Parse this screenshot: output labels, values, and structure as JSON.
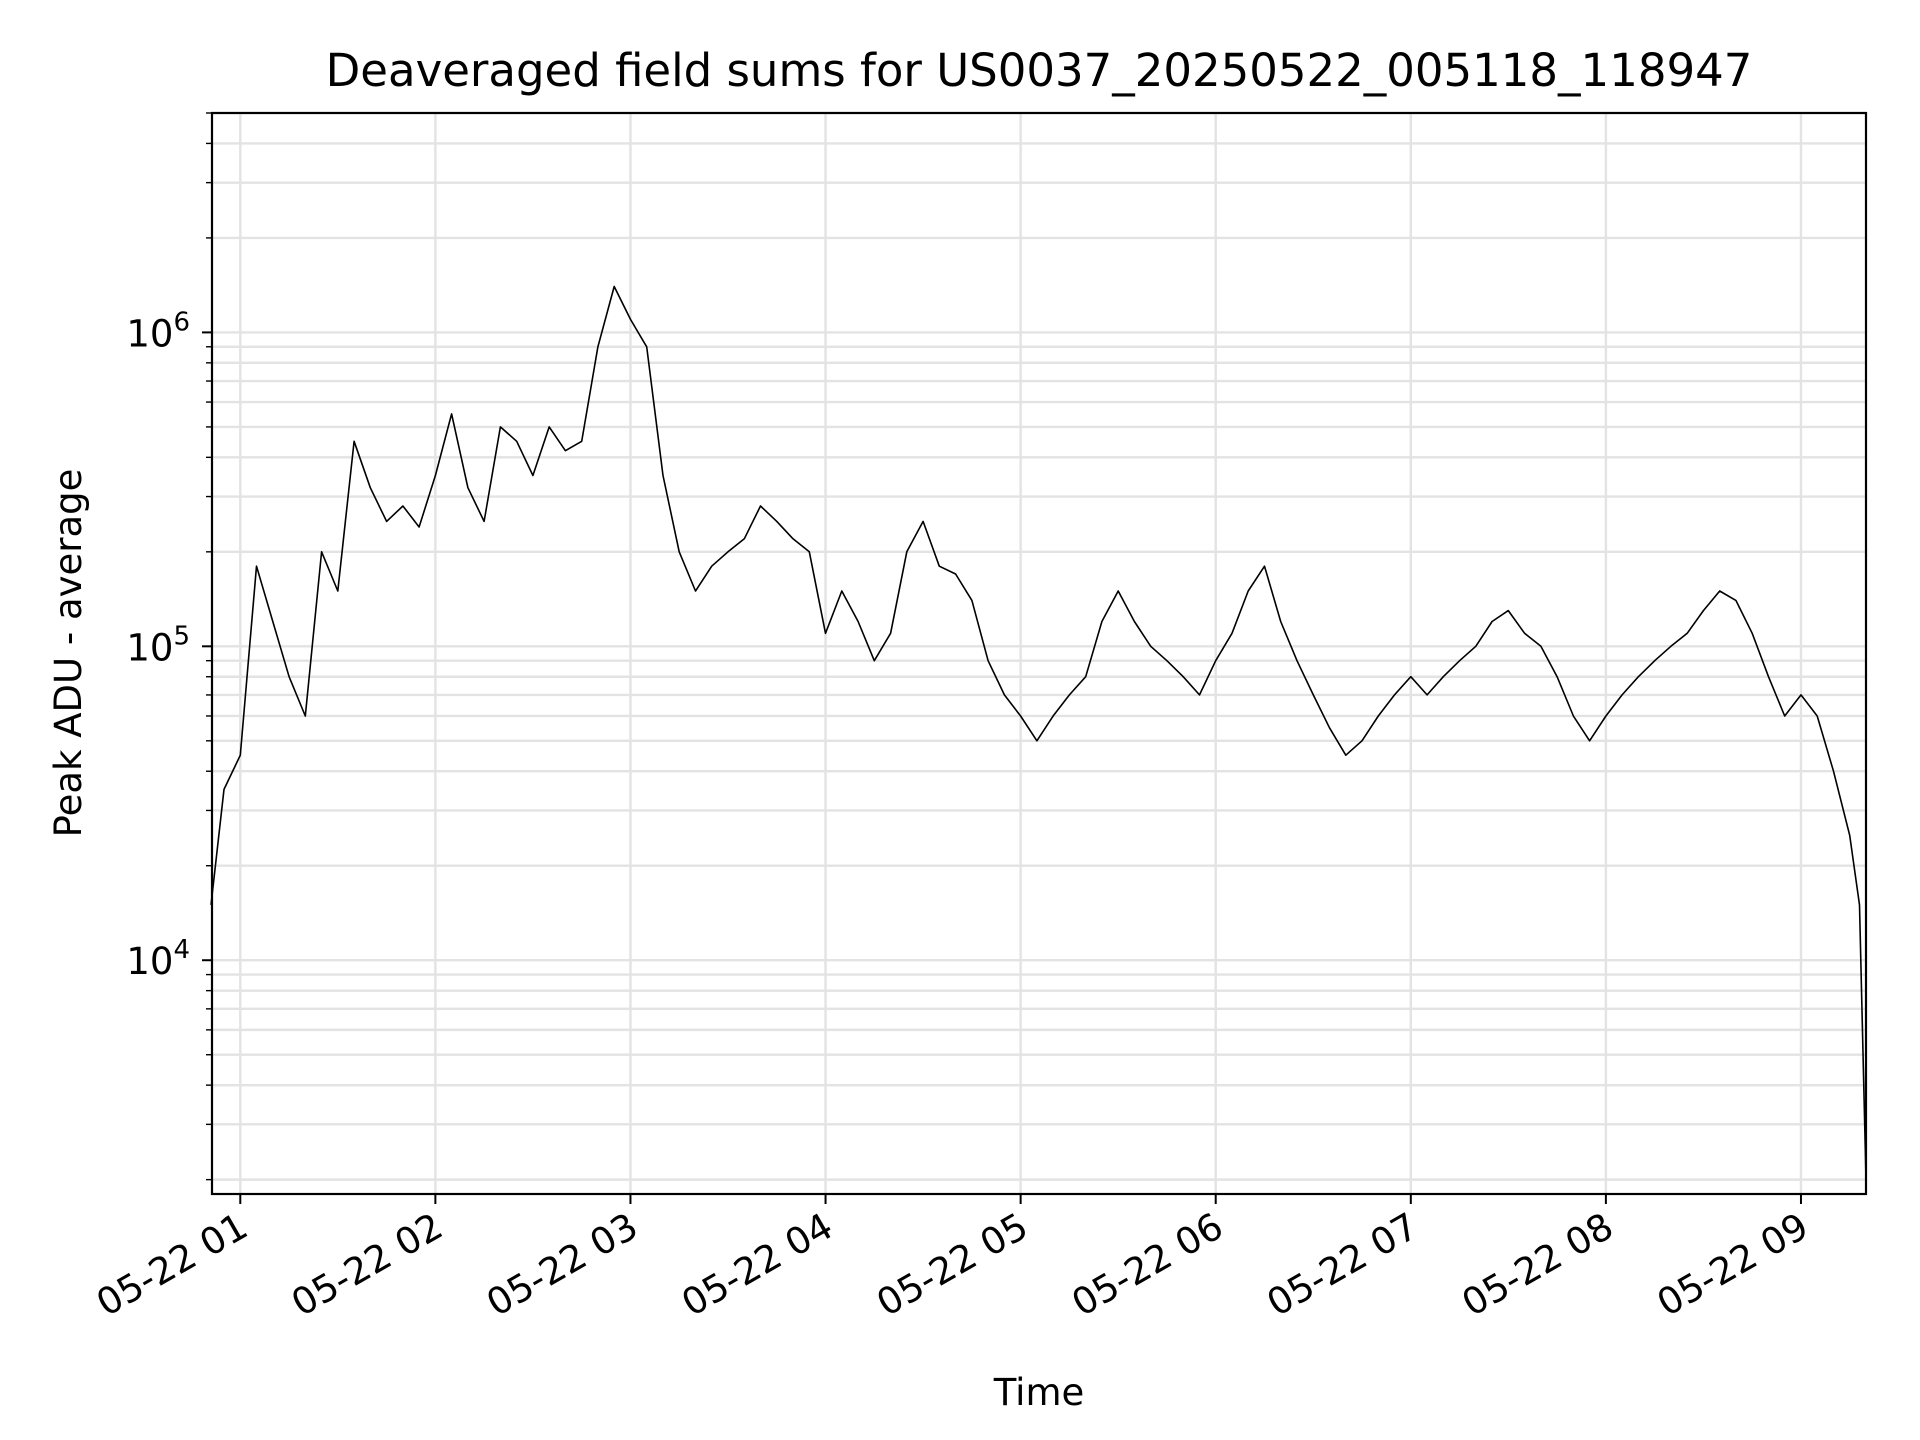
{
  "chart_data": {
    "type": "line",
    "title": "Deaveraged field sums for US0037_20250522_005118_118947",
    "xlabel": "Time",
    "ylabel": "Peak ADU - average",
    "yscale": "log",
    "ylim": [
      1800,
      5000000
    ],
    "xlim": [
      "2025-05-22 00:51:18",
      "2025-05-22 09:20:00"
    ],
    "xtick_labels": [
      "05-22 01",
      "05-22 02",
      "05-22 03",
      "05-22 04",
      "05-22 05",
      "05-22 06",
      "05-22 07",
      "05-22 08",
      "05-22 09"
    ],
    "xtick_times": [
      "2025-05-22 01:00",
      "2025-05-22 02:00",
      "2025-05-22 03:00",
      "2025-05-22 04:00",
      "2025-05-22 05:00",
      "2025-05-22 06:00",
      "2025-05-22 07:00",
      "2025-05-22 08:00",
      "2025-05-22 09:00"
    ],
    "ytick_labels": [
      {
        "base": "10",
        "exp": "4",
        "value": 10000
      },
      {
        "base": "10",
        "exp": "5",
        "value": 100000
      },
      {
        "base": "10",
        "exp": "6",
        "value": 1000000
      }
    ],
    "grid": true,
    "line_color": "#000000",
    "series": [
      {
        "x": [
          "2025-05-22 00:51",
          "2025-05-22 00:55",
          "2025-05-22 01:00",
          "2025-05-22 01:05",
          "2025-05-22 01:10",
          "2025-05-22 01:15",
          "2025-05-22 01:20",
          "2025-05-22 01:25",
          "2025-05-22 01:30",
          "2025-05-22 01:35",
          "2025-05-22 01:40",
          "2025-05-22 01:45",
          "2025-05-22 01:50",
          "2025-05-22 01:55",
          "2025-05-22 02:00",
          "2025-05-22 02:05",
          "2025-05-22 02:10",
          "2025-05-22 02:15",
          "2025-05-22 02:20",
          "2025-05-22 02:25",
          "2025-05-22 02:30",
          "2025-05-22 02:35",
          "2025-05-22 02:40",
          "2025-05-22 02:45",
          "2025-05-22 02:50",
          "2025-05-22 02:55",
          "2025-05-22 03:00",
          "2025-05-22 03:05",
          "2025-05-22 03:10",
          "2025-05-22 03:15",
          "2025-05-22 03:20",
          "2025-05-22 03:25",
          "2025-05-22 03:30",
          "2025-05-22 03:35",
          "2025-05-22 03:40",
          "2025-05-22 03:45",
          "2025-05-22 03:50",
          "2025-05-22 03:55",
          "2025-05-22 04:00",
          "2025-05-22 04:05",
          "2025-05-22 04:10",
          "2025-05-22 04:15",
          "2025-05-22 04:20",
          "2025-05-22 04:25",
          "2025-05-22 04:30",
          "2025-05-22 04:35",
          "2025-05-22 04:40",
          "2025-05-22 04:45",
          "2025-05-22 04:50",
          "2025-05-22 04:55",
          "2025-05-22 05:00",
          "2025-05-22 05:05",
          "2025-05-22 05:10",
          "2025-05-22 05:15",
          "2025-05-22 05:20",
          "2025-05-22 05:25",
          "2025-05-22 05:30",
          "2025-05-22 05:35",
          "2025-05-22 05:40",
          "2025-05-22 05:45",
          "2025-05-22 05:50",
          "2025-05-22 05:55",
          "2025-05-22 06:00",
          "2025-05-22 06:05",
          "2025-05-22 06:10",
          "2025-05-22 06:15",
          "2025-05-22 06:20",
          "2025-05-22 06:25",
          "2025-05-22 06:30",
          "2025-05-22 06:35",
          "2025-05-22 06:40",
          "2025-05-22 06:45",
          "2025-05-22 06:50",
          "2025-05-22 06:55",
          "2025-05-22 07:00",
          "2025-05-22 07:05",
          "2025-05-22 07:10",
          "2025-05-22 07:15",
          "2025-05-22 07:20",
          "2025-05-22 07:25",
          "2025-05-22 07:30",
          "2025-05-22 07:35",
          "2025-05-22 07:40",
          "2025-05-22 07:45",
          "2025-05-22 07:50",
          "2025-05-22 07:55",
          "2025-05-22 08:00",
          "2025-05-22 08:05",
          "2025-05-22 08:10",
          "2025-05-22 08:15",
          "2025-05-22 08:20",
          "2025-05-22 08:25",
          "2025-05-22 08:30",
          "2025-05-22 08:35",
          "2025-05-22 08:40",
          "2025-05-22 08:45",
          "2025-05-22 08:50",
          "2025-05-22 08:55",
          "2025-05-22 09:00",
          "2025-05-22 09:05",
          "2025-05-22 09:10",
          "2025-05-22 09:15",
          "2025-05-22 09:18",
          "2025-05-22 09:20"
        ],
        "y": [
          15000,
          35000,
          45000,
          180000,
          120000,
          80000,
          60000,
          200000,
          150000,
          450000,
          320000,
          250000,
          280000,
          240000,
          350000,
          550000,
          320000,
          250000,
          500000,
          450000,
          350000,
          500000,
          420000,
          450000,
          900000,
          1400000,
          1100000,
          900000,
          350000,
          200000,
          150000,
          180000,
          200000,
          220000,
          280000,
          250000,
          220000,
          200000,
          110000,
          150000,
          120000,
          90000,
          110000,
          200000,
          250000,
          180000,
          170000,
          140000,
          90000,
          70000,
          60000,
          50000,
          60000,
          70000,
          80000,
          120000,
          150000,
          120000,
          100000,
          90000,
          80000,
          70000,
          90000,
          110000,
          150000,
          180000,
          120000,
          90000,
          70000,
          55000,
          45000,
          50000,
          60000,
          70000,
          80000,
          70000,
          80000,
          90000,
          100000,
          120000,
          130000,
          110000,
          100000,
          80000,
          60000,
          50000,
          60000,
          70000,
          80000,
          90000,
          100000,
          110000,
          130000,
          150000,
          140000,
          110000,
          80000,
          60000,
          70000,
          60000,
          40000,
          25000,
          15000,
          2000
        ]
      }
    ]
  }
}
